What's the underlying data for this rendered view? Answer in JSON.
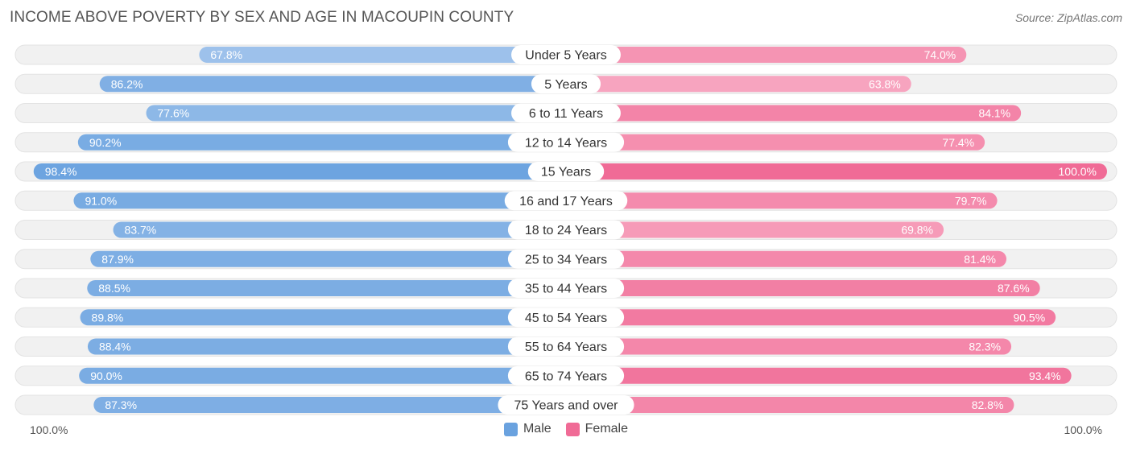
{
  "header": {
    "title": "INCOME ABOVE POVERTY BY SEX AND AGE IN MACOUPIN COUNTY",
    "source": "Source: ZipAtlas.com"
  },
  "axis": {
    "left_label": "100.0%",
    "right_label": "100.0%"
  },
  "legend": {
    "male_label": "Male",
    "female_label": "Female"
  },
  "colors": {
    "male_strong": "#6aa2df",
    "male_light": "#a9c9ee",
    "female_strong": "#f06b96",
    "female_light": "#f8aac3",
    "track": "#f1f1f1"
  },
  "chart_data": {
    "type": "bar",
    "orientation": "horizontal-diverging",
    "title": "INCOME ABOVE POVERTY BY SEX AND AGE IN MACOUPIN COUNTY",
    "categories": [
      "Under 5 Years",
      "5 Years",
      "6 to 11 Years",
      "12 to 14 Years",
      "15 Years",
      "16 and 17 Years",
      "18 to 24 Years",
      "25 to 34 Years",
      "35 to 44 Years",
      "45 to 54 Years",
      "55 to 64 Years",
      "65 to 74 Years",
      "75 Years and over"
    ],
    "series": [
      {
        "name": "Male",
        "values": [
          67.8,
          86.2,
          77.6,
          90.2,
          98.4,
          91.0,
          83.7,
          87.9,
          88.5,
          89.8,
          88.4,
          90.0,
          87.3
        ]
      },
      {
        "name": "Female",
        "values": [
          74.0,
          63.8,
          84.1,
          77.4,
          100.0,
          79.7,
          69.8,
          81.4,
          87.6,
          90.5,
          82.3,
          93.4,
          82.8
        ]
      }
    ],
    "value_labels": {
      "Male": [
        "67.8%",
        "86.2%",
        "77.6%",
        "90.2%",
        "98.4%",
        "91.0%",
        "83.7%",
        "87.9%",
        "88.5%",
        "89.8%",
        "88.4%",
        "90.0%",
        "87.3%"
      ],
      "Female": [
        "74.0%",
        "63.8%",
        "84.1%",
        "77.4%",
        "100.0%",
        "79.7%",
        "69.8%",
        "81.4%",
        "87.6%",
        "90.5%",
        "82.3%",
        "93.4%",
        "82.8%"
      ]
    },
    "xlim": [
      0,
      100
    ],
    "legend_position": "bottom-center"
  }
}
